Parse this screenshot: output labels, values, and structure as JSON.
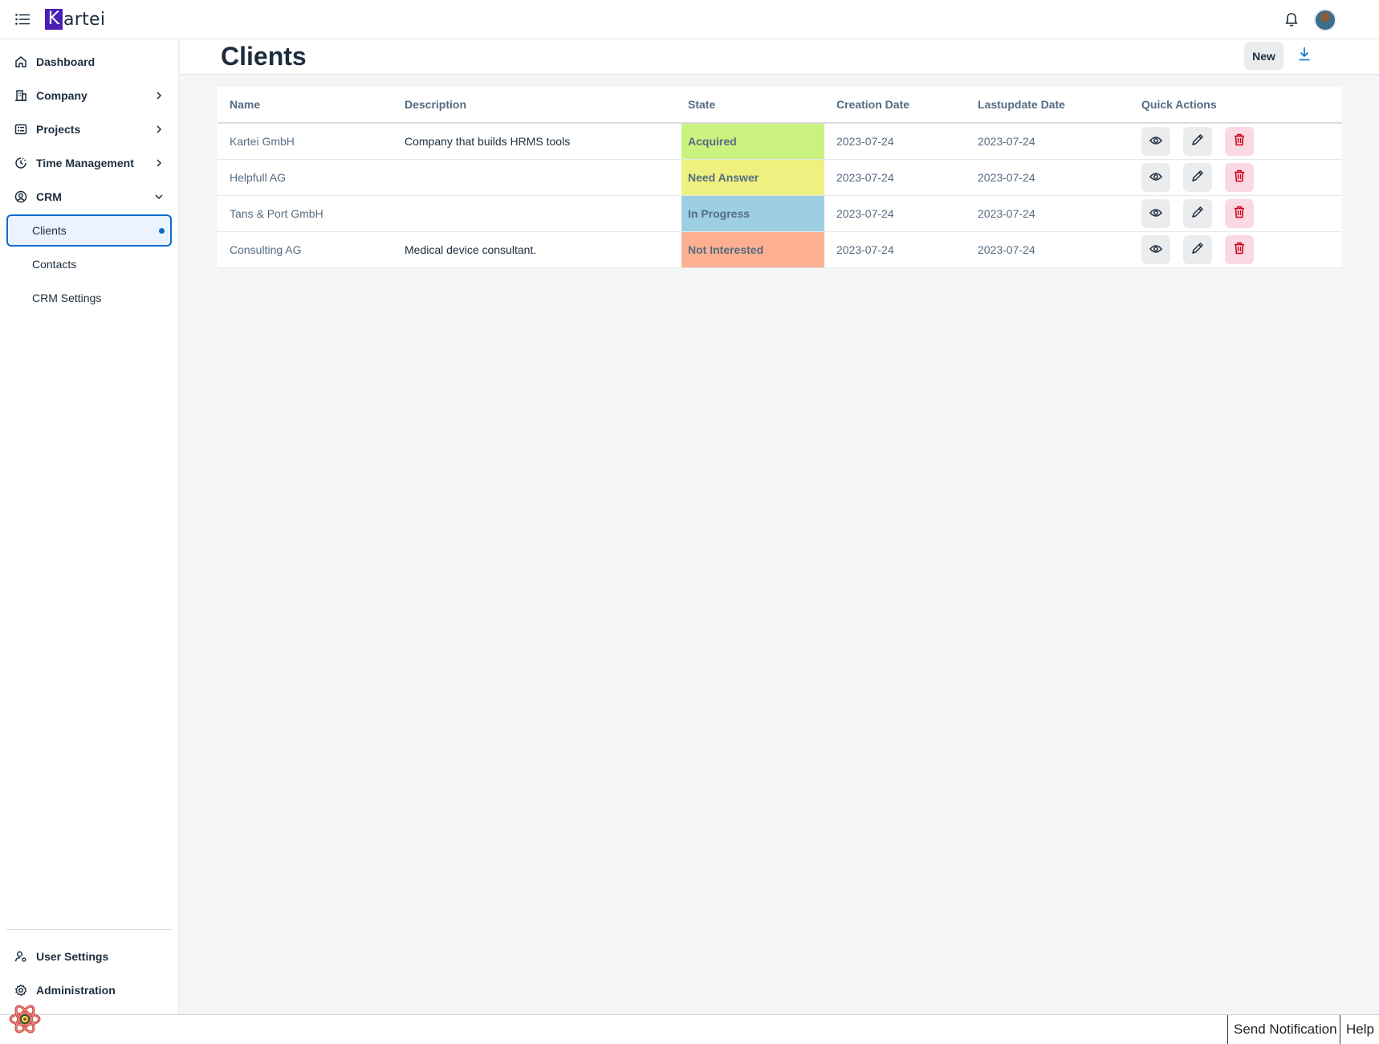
{
  "app": {
    "logo_letter": "K",
    "logo_rest": "artei"
  },
  "shellbar": {
    "menu_icon": "list-icon",
    "notifications_icon": "bell-icon",
    "avatar": "user-avatar"
  },
  "sidebar": {
    "items": [
      {
        "label": "Dashboard",
        "icon": "home-icon"
      },
      {
        "label": "Company",
        "icon": "building-icon"
      },
      {
        "label": "Projects",
        "icon": "projects-icon"
      },
      {
        "label": "Time Management",
        "icon": "time-icon"
      },
      {
        "label": "CRM",
        "icon": "crm-icon"
      }
    ],
    "crm_sub": [
      {
        "label": "Clients"
      },
      {
        "label": "Contacts"
      },
      {
        "label": "CRM Settings"
      }
    ],
    "bottom": [
      {
        "label": "User Settings",
        "icon": "user-settings-icon"
      },
      {
        "label": "Administration",
        "icon": "gear-icon"
      }
    ]
  },
  "page": {
    "title": "Clients",
    "new_label": "New"
  },
  "table": {
    "headers": [
      "Name",
      "Description",
      "State",
      "Creation Date",
      "Lastupdate Date",
      "Quick Actions"
    ],
    "rows": [
      {
        "name": "Kartei GmbH",
        "description": "Company that builds HRMS tools",
        "state": "Acquired",
        "state_color": "#c9f27f",
        "created": "2023-07-24",
        "updated": "2023-07-24"
      },
      {
        "name": "Helpfull AG",
        "description": "",
        "state": "Need Answer",
        "state_color": "#eef07f",
        "created": "2023-07-24",
        "updated": "2023-07-24"
      },
      {
        "name": "Tans & Port GmbH",
        "description": "",
        "state": "In Progress",
        "state_color": "#9dcfe2",
        "created": "2023-07-24",
        "updated": "2023-07-24"
      },
      {
        "name": "Consulting AG",
        "description": "Medical device consultant.",
        "state": "Not Interested",
        "state_color": "#fcb091",
        "created": "2023-07-24",
        "updated": "2023-07-24"
      }
    ]
  },
  "footer": {
    "send_notification": "Send Notification",
    "help": "Help"
  },
  "colors": {
    "accent": "#0a6ed1",
    "brand": "#4b1fb5",
    "delete": "#d0021b"
  }
}
